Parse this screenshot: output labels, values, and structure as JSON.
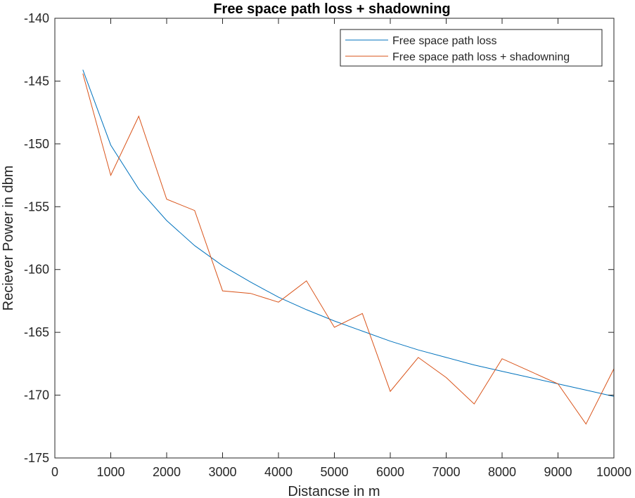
{
  "chart_data": {
    "type": "line",
    "title": "Free space path loss + shadowning",
    "xlabel": "Distancse in m",
    "ylabel": "Reciever Power in dbm",
    "xlim": [
      0,
      10000
    ],
    "ylim": [
      -175,
      -140
    ],
    "xticks": [
      0,
      1000,
      2000,
      3000,
      4000,
      5000,
      6000,
      7000,
      8000,
      9000,
      10000
    ],
    "yticks": [
      -175,
      -170,
      -165,
      -160,
      -155,
      -150,
      -145,
      -140
    ],
    "grid": false,
    "legend_position": "top-right",
    "x": [
      500,
      1000,
      1500,
      2000,
      2500,
      3000,
      3500,
      4000,
      4500,
      5000,
      5500,
      6000,
      6500,
      7000,
      7500,
      8000,
      8500,
      9000,
      9500,
      10000
    ],
    "series": [
      {
        "name": "Free space path loss",
        "color": "#0072BD",
        "values": [
          -144.1,
          -150.1,
          -153.6,
          -156.1,
          -158.1,
          -159.7,
          -161.0,
          -162.2,
          -163.2,
          -164.1,
          -164.9,
          -165.7,
          -166.4,
          -167.0,
          -167.6,
          -168.1,
          -168.6,
          -169.1,
          -169.6,
          -170.1
        ]
      },
      {
        "name": "Free space path loss + shadowning",
        "color": "#D95319",
        "values": [
          -144.4,
          -152.5,
          -147.8,
          -154.4,
          -155.3,
          -161.7,
          -161.9,
          -162.6,
          -160.9,
          -164.6,
          -163.5,
          -169.7,
          -167.0,
          -168.6,
          -170.7,
          -167.1,
          -168.1,
          -169.1,
          -172.3,
          -167.9
        ]
      }
    ]
  }
}
